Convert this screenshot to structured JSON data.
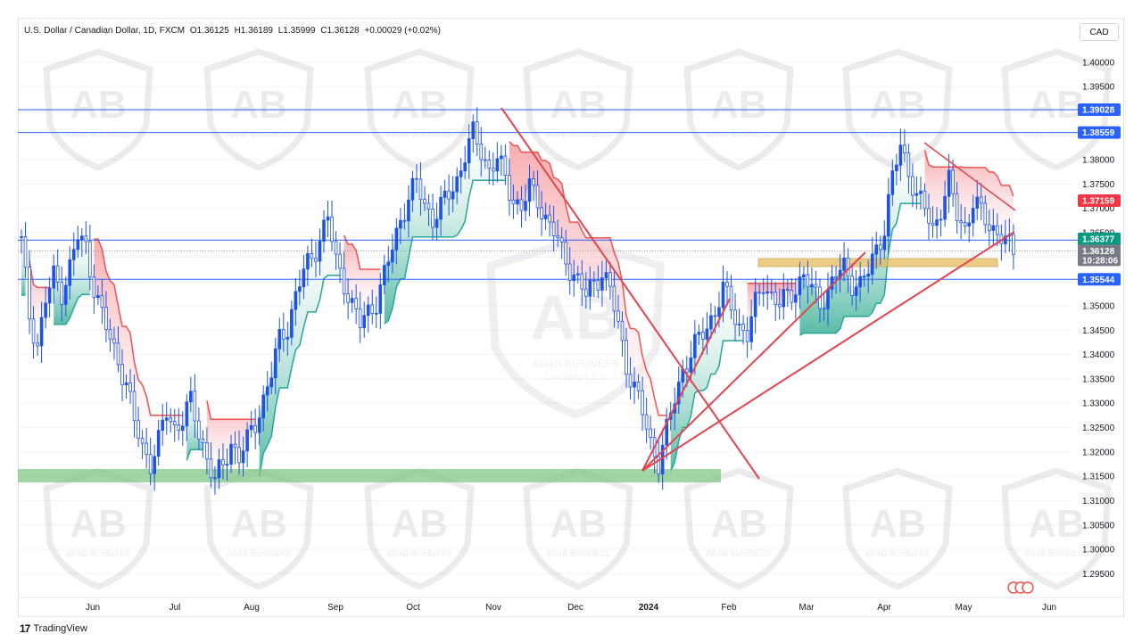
{
  "header": {
    "symbol": "U.S. Dollar / Canadian Dollar, 1D, FXCM",
    "open": "O1.36125",
    "high": "H1.36189",
    "low": "L1.35999",
    "close": "C1.36128",
    "change": "+0.00029 (+0.02%)"
  },
  "currency_button": "CAD",
  "branding": {
    "name": "TradingView",
    "logo": "17"
  },
  "watermark": {
    "text": "ARAB BUSINESS",
    "subtext": "Company L.L.C",
    "logo": "AB"
  },
  "colors": {
    "bull": "#26a69a",
    "bear": "#ef5350",
    "candle": "#1e53e5",
    "level_line": "#2962ff",
    "trendline": "#e0454f",
    "support_zone": "#81c784",
    "resistance_zone": "#e6bc5c",
    "tag_blue": "#2962ff",
    "tag_red": "#f23645",
    "tag_green": "#089981",
    "tag_grey": "#787b86"
  },
  "chart_data": {
    "type": "candlestick",
    "title": "U.S. Dollar / Canadian Dollar, 1D, FXCM",
    "ylim": [
      1.2905,
      1.404
    ],
    "y_ticks": [
      "1.40000",
      "1.39500",
      "1.39000",
      "1.38500",
      "1.38000",
      "1.37500",
      "1.37000",
      "1.36500",
      "1.36000",
      "1.35500",
      "1.35000",
      "1.34500",
      "1.34000",
      "1.33500",
      "1.33000",
      "1.32500",
      "1.32000",
      "1.31500",
      "1.31000",
      "1.30500",
      "1.30000",
      "1.29500"
    ],
    "x_labels": [
      "Jun",
      "Jul",
      "Aug",
      "Sep",
      "Oct",
      "Nov",
      "Dec",
      "2024",
      "Feb",
      "Mar",
      "Apr",
      "May",
      "Jun"
    ],
    "x_label_bold": "2024",
    "last_price": "1.36128",
    "countdown": "10:28:06",
    "levels": [
      {
        "price": 1.39028,
        "label": "1.39028",
        "tag": "blue"
      },
      {
        "price": 1.38559,
        "label": "1.38559",
        "tag": "blue"
      },
      {
        "price": 1.3635,
        "label": "1.36350",
        "tag": "blue"
      },
      {
        "price": 1.35544,
        "label": "1.35544",
        "tag": "blue"
      }
    ],
    "indicator_tags": [
      {
        "price": 1.37159,
        "label": "1.37159",
        "tag": "red"
      },
      {
        "price": 1.36377,
        "label": "1.36377",
        "tag": "green"
      }
    ],
    "zones": [
      {
        "name": "support",
        "x_from": "May 2023",
        "x_to": "Jan 2024",
        "y_from": 1.3163,
        "y_to": 1.3177
      },
      {
        "name": "resistance",
        "x_from": "Feb 2024",
        "x_to": "May 2024",
        "y_from": 1.3599,
        "y_to": 1.3607
      }
    ],
    "price_path": [
      [
        0,
        1.363
      ],
      [
        2,
        1.348
      ],
      [
        4,
        1.342
      ],
      [
        6,
        1.351
      ],
      [
        8,
        1.356
      ],
      [
        10,
        1.353
      ],
      [
        12,
        1.358
      ],
      [
        14,
        1.364
      ],
      [
        16,
        1.362
      ],
      [
        18,
        1.354
      ],
      [
        20,
        1.348
      ],
      [
        22,
        1.343
      ],
      [
        24,
        1.339
      ],
      [
        26,
        1.334
      ],
      [
        28,
        1.326
      ],
      [
        30,
        1.321
      ],
      [
        32,
        1.318
      ],
      [
        34,
        1.322
      ],
      [
        36,
        1.328
      ],
      [
        38,
        1.325
      ],
      [
        40,
        1.327
      ],
      [
        42,
        1.33
      ],
      [
        44,
        1.324
      ],
      [
        46,
        1.319
      ],
      [
        48,
        1.314
      ],
      [
        50,
        1.317
      ],
      [
        52,
        1.322
      ],
      [
        54,
        1.319
      ],
      [
        56,
        1.322
      ],
      [
        58,
        1.326
      ],
      [
        60,
        1.331
      ],
      [
        62,
        1.336
      ],
      [
        64,
        1.343
      ],
      [
        66,
        1.346
      ],
      [
        68,
        1.352
      ],
      [
        70,
        1.357
      ],
      [
        72,
        1.36
      ],
      [
        74,
        1.364
      ],
      [
        76,
        1.368
      ],
      [
        78,
        1.359
      ],
      [
        80,
        1.355
      ],
      [
        82,
        1.35
      ],
      [
        84,
        1.346
      ],
      [
        86,
        1.349
      ],
      [
        88,
        1.351
      ],
      [
        90,
        1.356
      ],
      [
        92,
        1.362
      ],
      [
        94,
        1.368
      ],
      [
        96,
        1.372
      ],
      [
        98,
        1.375
      ],
      [
        100,
        1.371
      ],
      [
        102,
        1.368
      ],
      [
        104,
        1.37
      ],
      [
        106,
        1.373
      ],
      [
        108,
        1.376
      ],
      [
        110,
        1.381
      ],
      [
        112,
        1.385
      ],
      [
        114,
        1.382
      ],
      [
        116,
        1.378
      ],
      [
        118,
        1.38
      ],
      [
        120,
        1.376
      ],
      [
        122,
        1.372
      ],
      [
        124,
        1.37
      ],
      [
        126,
        1.374
      ],
      [
        128,
        1.372
      ],
      [
        130,
        1.368
      ],
      [
        132,
        1.365
      ],
      [
        134,
        1.361
      ],
      [
        136,
        1.358
      ],
      [
        138,
        1.355
      ],
      [
        140,
        1.352
      ],
      [
        142,
        1.355
      ],
      [
        144,
        1.357
      ],
      [
        146,
        1.353
      ],
      [
        148,
        1.346
      ],
      [
        150,
        1.338
      ],
      [
        152,
        1.333
      ],
      [
        154,
        1.328
      ],
      [
        156,
        1.322
      ],
      [
        158,
        1.318
      ],
      [
        160,
        1.324
      ],
      [
        162,
        1.331
      ],
      [
        164,
        1.337
      ],
      [
        166,
        1.34
      ],
      [
        168,
        1.343
      ],
      [
        170,
        1.346
      ],
      [
        172,
        1.349
      ],
      [
        174,
        1.353
      ],
      [
        176,
        1.35
      ],
      [
        178,
        1.346
      ],
      [
        180,
        1.344
      ],
      [
        182,
        1.35
      ],
      [
        184,
        1.355
      ],
      [
        186,
        1.352
      ],
      [
        188,
        1.35
      ],
      [
        190,
        1.352
      ],
      [
        192,
        1.354
      ],
      [
        194,
        1.356
      ],
      [
        196,
        1.353
      ],
      [
        198,
        1.351
      ],
      [
        200,
        1.353
      ],
      [
        202,
        1.356
      ],
      [
        204,
        1.358
      ],
      [
        206,
        1.355
      ],
      [
        208,
        1.354
      ],
      [
        210,
        1.357
      ],
      [
        212,
        1.362
      ],
      [
        214,
        1.366
      ],
      [
        216,
        1.376
      ],
      [
        218,
        1.383
      ],
      [
        220,
        1.378
      ],
      [
        222,
        1.372
      ],
      [
        224,
        1.37
      ],
      [
        226,
        1.366
      ],
      [
        228,
        1.37
      ],
      [
        230,
        1.375
      ],
      [
        232,
        1.369
      ],
      [
        234,
        1.366
      ],
      [
        236,
        1.371
      ],
      [
        238,
        1.369
      ],
      [
        240,
        1.367
      ],
      [
        242,
        1.365
      ],
      [
        244,
        1.363
      ],
      [
        246,
        1.361
      ]
    ]
  }
}
